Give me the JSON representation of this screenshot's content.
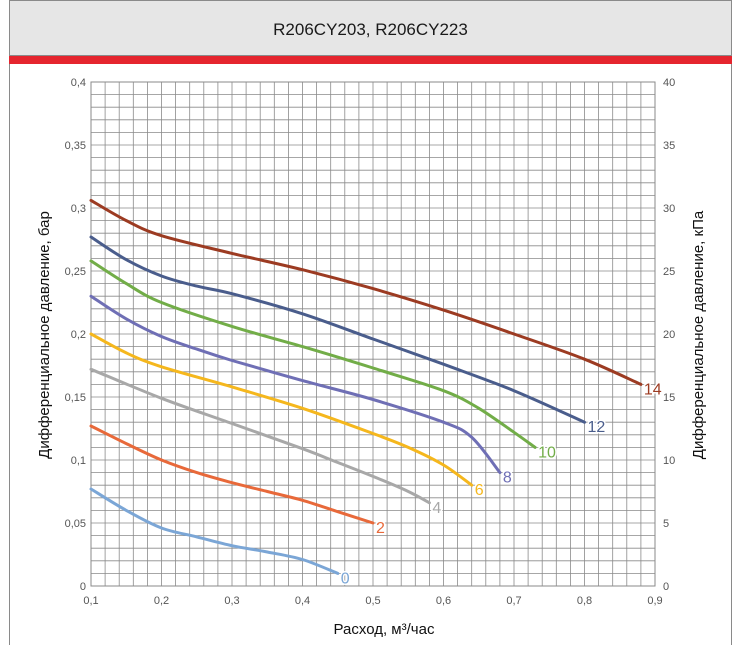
{
  "chart_data": {
    "type": "line",
    "title": "R206CY203, R206CY223",
    "xlabel": "Расход, м³/час",
    "ylabel": "Дифференциальное давление, бар",
    "ylabel_right": "Дифференциальное давление, кПа",
    "xlim": [
      0.1,
      0.9
    ],
    "ylim": [
      0,
      0.4
    ],
    "ylim_right": [
      0,
      40
    ],
    "grid": true,
    "x_ticks": [
      "0,1",
      "0,2",
      "0,3",
      "0,4",
      "0,5",
      "0,6",
      "0,7",
      "0,8",
      "0,9"
    ],
    "y_ticks": [
      "0",
      "0,05",
      "0,1",
      "0,15",
      "0,2",
      "0,25",
      "0,3",
      "0,35",
      "0,4"
    ],
    "y_ticks_right": [
      "0",
      "5",
      "10",
      "15",
      "20",
      "25",
      "30",
      "35",
      "40"
    ],
    "series": [
      {
        "name": "0",
        "color": "#7ba6d6",
        "x": [
          0.1,
          0.15,
          0.2,
          0.25,
          0.3,
          0.35,
          0.4,
          0.45
        ],
        "y": [
          0.077,
          0.06,
          0.046,
          0.039,
          0.032,
          0.027,
          0.021,
          0.01
        ]
      },
      {
        "name": "2",
        "color": "#e8693a",
        "x": [
          0.1,
          0.15,
          0.2,
          0.25,
          0.3,
          0.35,
          0.4,
          0.45,
          0.5
        ],
        "y": [
          0.127,
          0.113,
          0.1,
          0.09,
          0.082,
          0.075,
          0.068,
          0.059,
          0.05
        ]
      },
      {
        "name": "4",
        "color": "#a8a8a8",
        "x": [
          0.1,
          0.2,
          0.3,
          0.4,
          0.45,
          0.5,
          0.55,
          0.58
        ],
        "y": [
          0.172,
          0.149,
          0.129,
          0.109,
          0.098,
          0.087,
          0.075,
          0.066
        ]
      },
      {
        "name": "6",
        "color": "#f5b71d",
        "x": [
          0.1,
          0.15,
          0.2,
          0.3,
          0.4,
          0.5,
          0.55,
          0.6,
          0.64
        ],
        "y": [
          0.2,
          0.185,
          0.174,
          0.158,
          0.141,
          0.121,
          0.11,
          0.096,
          0.08
        ]
      },
      {
        "name": "8",
        "color": "#6f6fb5",
        "x": [
          0.1,
          0.15,
          0.2,
          0.25,
          0.3,
          0.4,
          0.5,
          0.6,
          0.64,
          0.68
        ],
        "y": [
          0.23,
          0.212,
          0.198,
          0.188,
          0.179,
          0.163,
          0.148,
          0.13,
          0.118,
          0.09
        ]
      },
      {
        "name": "10",
        "color": "#72ad48",
        "x": [
          0.1,
          0.15,
          0.2,
          0.3,
          0.4,
          0.5,
          0.6,
          0.65,
          0.7,
          0.73
        ],
        "y": [
          0.258,
          0.24,
          0.225,
          0.206,
          0.19,
          0.173,
          0.155,
          0.141,
          0.122,
          0.11
        ]
      },
      {
        "name": "12",
        "color": "#4a5d8c",
        "x": [
          0.1,
          0.15,
          0.2,
          0.25,
          0.3,
          0.4,
          0.5,
          0.6,
          0.7,
          0.8
        ],
        "y": [
          0.277,
          0.259,
          0.246,
          0.238,
          0.232,
          0.216,
          0.196,
          0.176,
          0.155,
          0.13
        ]
      },
      {
        "name": "14",
        "color": "#9c3b22",
        "x": [
          0.1,
          0.15,
          0.2,
          0.3,
          0.4,
          0.5,
          0.6,
          0.7,
          0.8,
          0.88
        ],
        "y": [
          0.306,
          0.29,
          0.278,
          0.264,
          0.251,
          0.236,
          0.219,
          0.2,
          0.18,
          0.16
        ]
      }
    ]
  }
}
